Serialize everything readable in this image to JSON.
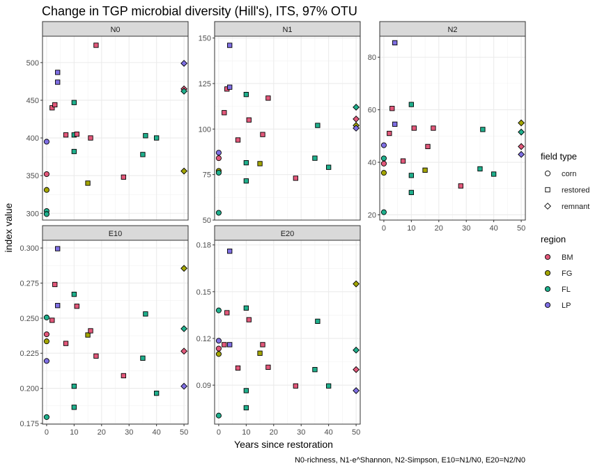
{
  "chart_data": {
    "type": "scatter",
    "title": "Change in TGP microbial diversity (Hill's), ITS, 97% OTU",
    "xlabel": "Years since restoration",
    "ylabel": "index value",
    "caption": "N0-richness, N1-e^Shannon, N2-Simpson, E10=N1/N0, E20=N2/N0",
    "x_ticks": [
      0,
      10,
      20,
      30,
      40,
      50
    ],
    "x_tick_labels": [
      "0",
      "10",
      "20",
      "30",
      "40",
      "50"
    ],
    "xlim": [
      -1.5,
      51.5
    ],
    "grid": true,
    "legend_placement": "right",
    "legends": {
      "field_type": {
        "title": "field type",
        "entries": [
          {
            "key": "corn",
            "label": "corn",
            "shape": "circle"
          },
          {
            "key": "restored",
            "label": "restored",
            "shape": "square"
          },
          {
            "key": "remnant",
            "label": "remnant",
            "shape": "diamond"
          }
        ]
      },
      "region": {
        "title": "region",
        "entries": [
          {
            "key": "BM",
            "label": "BM",
            "color": "#E2587A"
          },
          {
            "key": "FG",
            "label": "FG",
            "color": "#A3A500"
          },
          {
            "key": "FL",
            "label": "FL",
            "color": "#1FAF8C"
          },
          {
            "key": "LP",
            "label": "LP",
            "color": "#7F6FE3"
          }
        ]
      }
    },
    "panels": [
      {
        "label": "N0",
        "ylim": [
          291,
          535
        ],
        "y_ticks": [
          300,
          350,
          400,
          450,
          500
        ],
        "y_tick_labels": [
          "300",
          "350",
          "400",
          "450",
          "500"
        ],
        "points": [
          [
            0,
            352,
            "corn",
            "BM"
          ],
          [
            0,
            331,
            "corn",
            "FG"
          ],
          [
            0,
            303,
            "corn",
            "FL"
          ],
          [
            0,
            299,
            "corn",
            "FL"
          ],
          [
            0,
            395,
            "corn",
            "LP"
          ],
          [
            2,
            440,
            "restored",
            "BM"
          ],
          [
            3,
            444,
            "restored",
            "BM"
          ],
          [
            4,
            487,
            "restored",
            "LP"
          ],
          [
            4,
            474,
            "restored",
            "LP"
          ],
          [
            7,
            404,
            "restored",
            "BM"
          ],
          [
            10,
            447,
            "restored",
            "FL"
          ],
          [
            10,
            404,
            "restored",
            "FL"
          ],
          [
            10,
            382,
            "restored",
            "FL"
          ],
          [
            11,
            405,
            "restored",
            "BM"
          ],
          [
            15,
            340,
            "restored",
            "FG"
          ],
          [
            16,
            400,
            "restored",
            "BM"
          ],
          [
            18,
            523,
            "restored",
            "BM"
          ],
          [
            28,
            348,
            "restored",
            "BM"
          ],
          [
            35,
            378,
            "restored",
            "FL"
          ],
          [
            36,
            403,
            "restored",
            "FL"
          ],
          [
            40,
            400,
            "restored",
            "FL"
          ],
          [
            50,
            499,
            "remnant",
            "LP"
          ],
          [
            50,
            465,
            "remnant",
            "BM"
          ],
          [
            50,
            462,
            "remnant",
            "FL"
          ],
          [
            50,
            356,
            "remnant",
            "FG"
          ]
        ]
      },
      {
        "label": "N1",
        "ylim": [
          50,
          151
        ],
        "y_ticks": [
          50,
          75,
          100,
          125,
          150
        ],
        "y_tick_labels": [
          "50",
          "75",
          "100",
          "125",
          "150"
        ],
        "points": [
          [
            0,
            84,
            "corn",
            "BM"
          ],
          [
            0,
            77,
            "corn",
            "FG"
          ],
          [
            0,
            76,
            "corn",
            "FL"
          ],
          [
            0,
            54,
            "corn",
            "FL"
          ],
          [
            0,
            87,
            "corn",
            "LP"
          ],
          [
            2,
            109,
            "restored",
            "BM"
          ],
          [
            3,
            122,
            "restored",
            "BM"
          ],
          [
            4,
            146,
            "restored",
            "LP"
          ],
          [
            4,
            123,
            "restored",
            "LP"
          ],
          [
            7,
            94,
            "restored",
            "BM"
          ],
          [
            10,
            119,
            "restored",
            "FL"
          ],
          [
            10,
            81.5,
            "restored",
            "FL"
          ],
          [
            10,
            71.5,
            "restored",
            "FL"
          ],
          [
            11,
            105,
            "restored",
            "BM"
          ],
          [
            15,
            81,
            "restored",
            "FG"
          ],
          [
            16,
            97,
            "restored",
            "BM"
          ],
          [
            18,
            117,
            "restored",
            "BM"
          ],
          [
            28,
            73,
            "restored",
            "BM"
          ],
          [
            35,
            84,
            "restored",
            "FL"
          ],
          [
            36,
            102,
            "restored",
            "FL"
          ],
          [
            40,
            79,
            "restored",
            "FL"
          ],
          [
            50,
            112,
            "remnant",
            "FL"
          ],
          [
            50,
            105.5,
            "remnant",
            "BM"
          ],
          [
            50,
            102,
            "remnant",
            "FG"
          ],
          [
            50,
            100.5,
            "remnant",
            "LP"
          ]
        ]
      },
      {
        "label": "N2",
        "ylim": [
          18,
          88
        ],
        "y_ticks": [
          20,
          40,
          60,
          80
        ],
        "y_tick_labels": [
          "20",
          "40",
          "60",
          "80"
        ],
        "points": [
          [
            0,
            39.5,
            "corn",
            "BM"
          ],
          [
            0,
            36,
            "corn",
            "FG"
          ],
          [
            0,
            41.5,
            "corn",
            "FL"
          ],
          [
            0,
            21,
            "corn",
            "FL"
          ],
          [
            0,
            46.5,
            "corn",
            "LP"
          ],
          [
            2,
            51,
            "restored",
            "BM"
          ],
          [
            3,
            60.5,
            "restored",
            "BM"
          ],
          [
            4,
            85.5,
            "restored",
            "LP"
          ],
          [
            4,
            54.5,
            "restored",
            "LP"
          ],
          [
            7,
            40.5,
            "restored",
            "BM"
          ],
          [
            10,
            62,
            "restored",
            "FL"
          ],
          [
            10,
            35,
            "restored",
            "FL"
          ],
          [
            10,
            28.5,
            "restored",
            "FL"
          ],
          [
            11,
            53,
            "restored",
            "BM"
          ],
          [
            15,
            37,
            "restored",
            "FG"
          ],
          [
            16,
            46,
            "restored",
            "BM"
          ],
          [
            18,
            53,
            "restored",
            "BM"
          ],
          [
            28,
            31,
            "restored",
            "BM"
          ],
          [
            35,
            37.5,
            "restored",
            "FL"
          ],
          [
            36,
            52.5,
            "restored",
            "FL"
          ],
          [
            40,
            35.5,
            "restored",
            "FL"
          ],
          [
            50,
            55,
            "remnant",
            "FG"
          ],
          [
            50,
            51.5,
            "remnant",
            "FL"
          ],
          [
            50,
            46,
            "remnant",
            "BM"
          ],
          [
            50,
            43,
            "remnant",
            "LP"
          ]
        ]
      },
      {
        "label": "E10",
        "ylim": [
          0.1745,
          0.3055
        ],
        "y_ticks": [
          0.175,
          0.2,
          0.225,
          0.25,
          0.275,
          0.3
        ],
        "y_tick_labels": [
          "0.175",
          "0.200",
          "0.225",
          "0.250",
          "0.275",
          "0.300"
        ],
        "points": [
          [
            0,
            0.2385,
            "corn",
            "BM"
          ],
          [
            0,
            0.2335,
            "corn",
            "FG"
          ],
          [
            0,
            0.2505,
            "corn",
            "FL"
          ],
          [
            0,
            0.1795,
            "corn",
            "FL"
          ],
          [
            0,
            0.2195,
            "corn",
            "LP"
          ],
          [
            2,
            0.2485,
            "restored",
            "BM"
          ],
          [
            3,
            0.274,
            "restored",
            "BM"
          ],
          [
            4,
            0.2995,
            "restored",
            "LP"
          ],
          [
            4,
            0.259,
            "restored",
            "LP"
          ],
          [
            7,
            0.232,
            "restored",
            "BM"
          ],
          [
            10,
            0.267,
            "restored",
            "FL"
          ],
          [
            10,
            0.2015,
            "restored",
            "FL"
          ],
          [
            10,
            0.1865,
            "restored",
            "FL"
          ],
          [
            11,
            0.2585,
            "restored",
            "BM"
          ],
          [
            15,
            0.238,
            "restored",
            "FG"
          ],
          [
            16,
            0.241,
            "restored",
            "BM"
          ],
          [
            18,
            0.223,
            "restored",
            "BM"
          ],
          [
            28,
            0.209,
            "restored",
            "BM"
          ],
          [
            35,
            0.2215,
            "restored",
            "FL"
          ],
          [
            36,
            0.253,
            "restored",
            "FL"
          ],
          [
            40,
            0.1965,
            "restored",
            "FL"
          ],
          [
            50,
            0.2855,
            "remnant",
            "FG"
          ],
          [
            50,
            0.2425,
            "remnant",
            "FL"
          ],
          [
            50,
            0.2265,
            "remnant",
            "BM"
          ],
          [
            50,
            0.2015,
            "remnant",
            "LP"
          ]
        ]
      },
      {
        "label": "E20",
        "ylim": [
          0.065,
          0.183
        ],
        "y_ticks": [
          0.09,
          0.12,
          0.15,
          0.18
        ],
        "y_tick_labels": [
          "0.09",
          "0.12",
          "0.15",
          "0.18"
        ],
        "points": [
          [
            0,
            0.1135,
            "corn",
            "BM"
          ],
          [
            0,
            0.11,
            "corn",
            "FG"
          ],
          [
            0,
            0.138,
            "corn",
            "FL"
          ],
          [
            0,
            0.0705,
            "corn",
            "FL"
          ],
          [
            0,
            0.1185,
            "corn",
            "LP"
          ],
          [
            2,
            0.116,
            "restored",
            "BM"
          ],
          [
            3,
            0.1365,
            "restored",
            "BM"
          ],
          [
            4,
            0.176,
            "restored",
            "LP"
          ],
          [
            4,
            0.116,
            "restored",
            "LP"
          ],
          [
            7,
            0.101,
            "restored",
            "BM"
          ],
          [
            10,
            0.1395,
            "restored",
            "FL"
          ],
          [
            10,
            0.0865,
            "restored",
            "FL"
          ],
          [
            10,
            0.0755,
            "restored",
            "FL"
          ],
          [
            11,
            0.132,
            "restored",
            "BM"
          ],
          [
            15,
            0.1105,
            "restored",
            "FG"
          ],
          [
            16,
            0.116,
            "restored",
            "BM"
          ],
          [
            18,
            0.1015,
            "restored",
            "BM"
          ],
          [
            28,
            0.0895,
            "restored",
            "BM"
          ],
          [
            35,
            0.1,
            "restored",
            "FL"
          ],
          [
            36,
            0.131,
            "restored",
            "FL"
          ],
          [
            40,
            0.0895,
            "restored",
            "FL"
          ],
          [
            50,
            0.155,
            "remnant",
            "FG"
          ],
          [
            50,
            0.1125,
            "remnant",
            "FL"
          ],
          [
            50,
            0.1,
            "remnant",
            "BM"
          ],
          [
            50,
            0.0865,
            "remnant",
            "LP"
          ]
        ]
      }
    ]
  }
}
